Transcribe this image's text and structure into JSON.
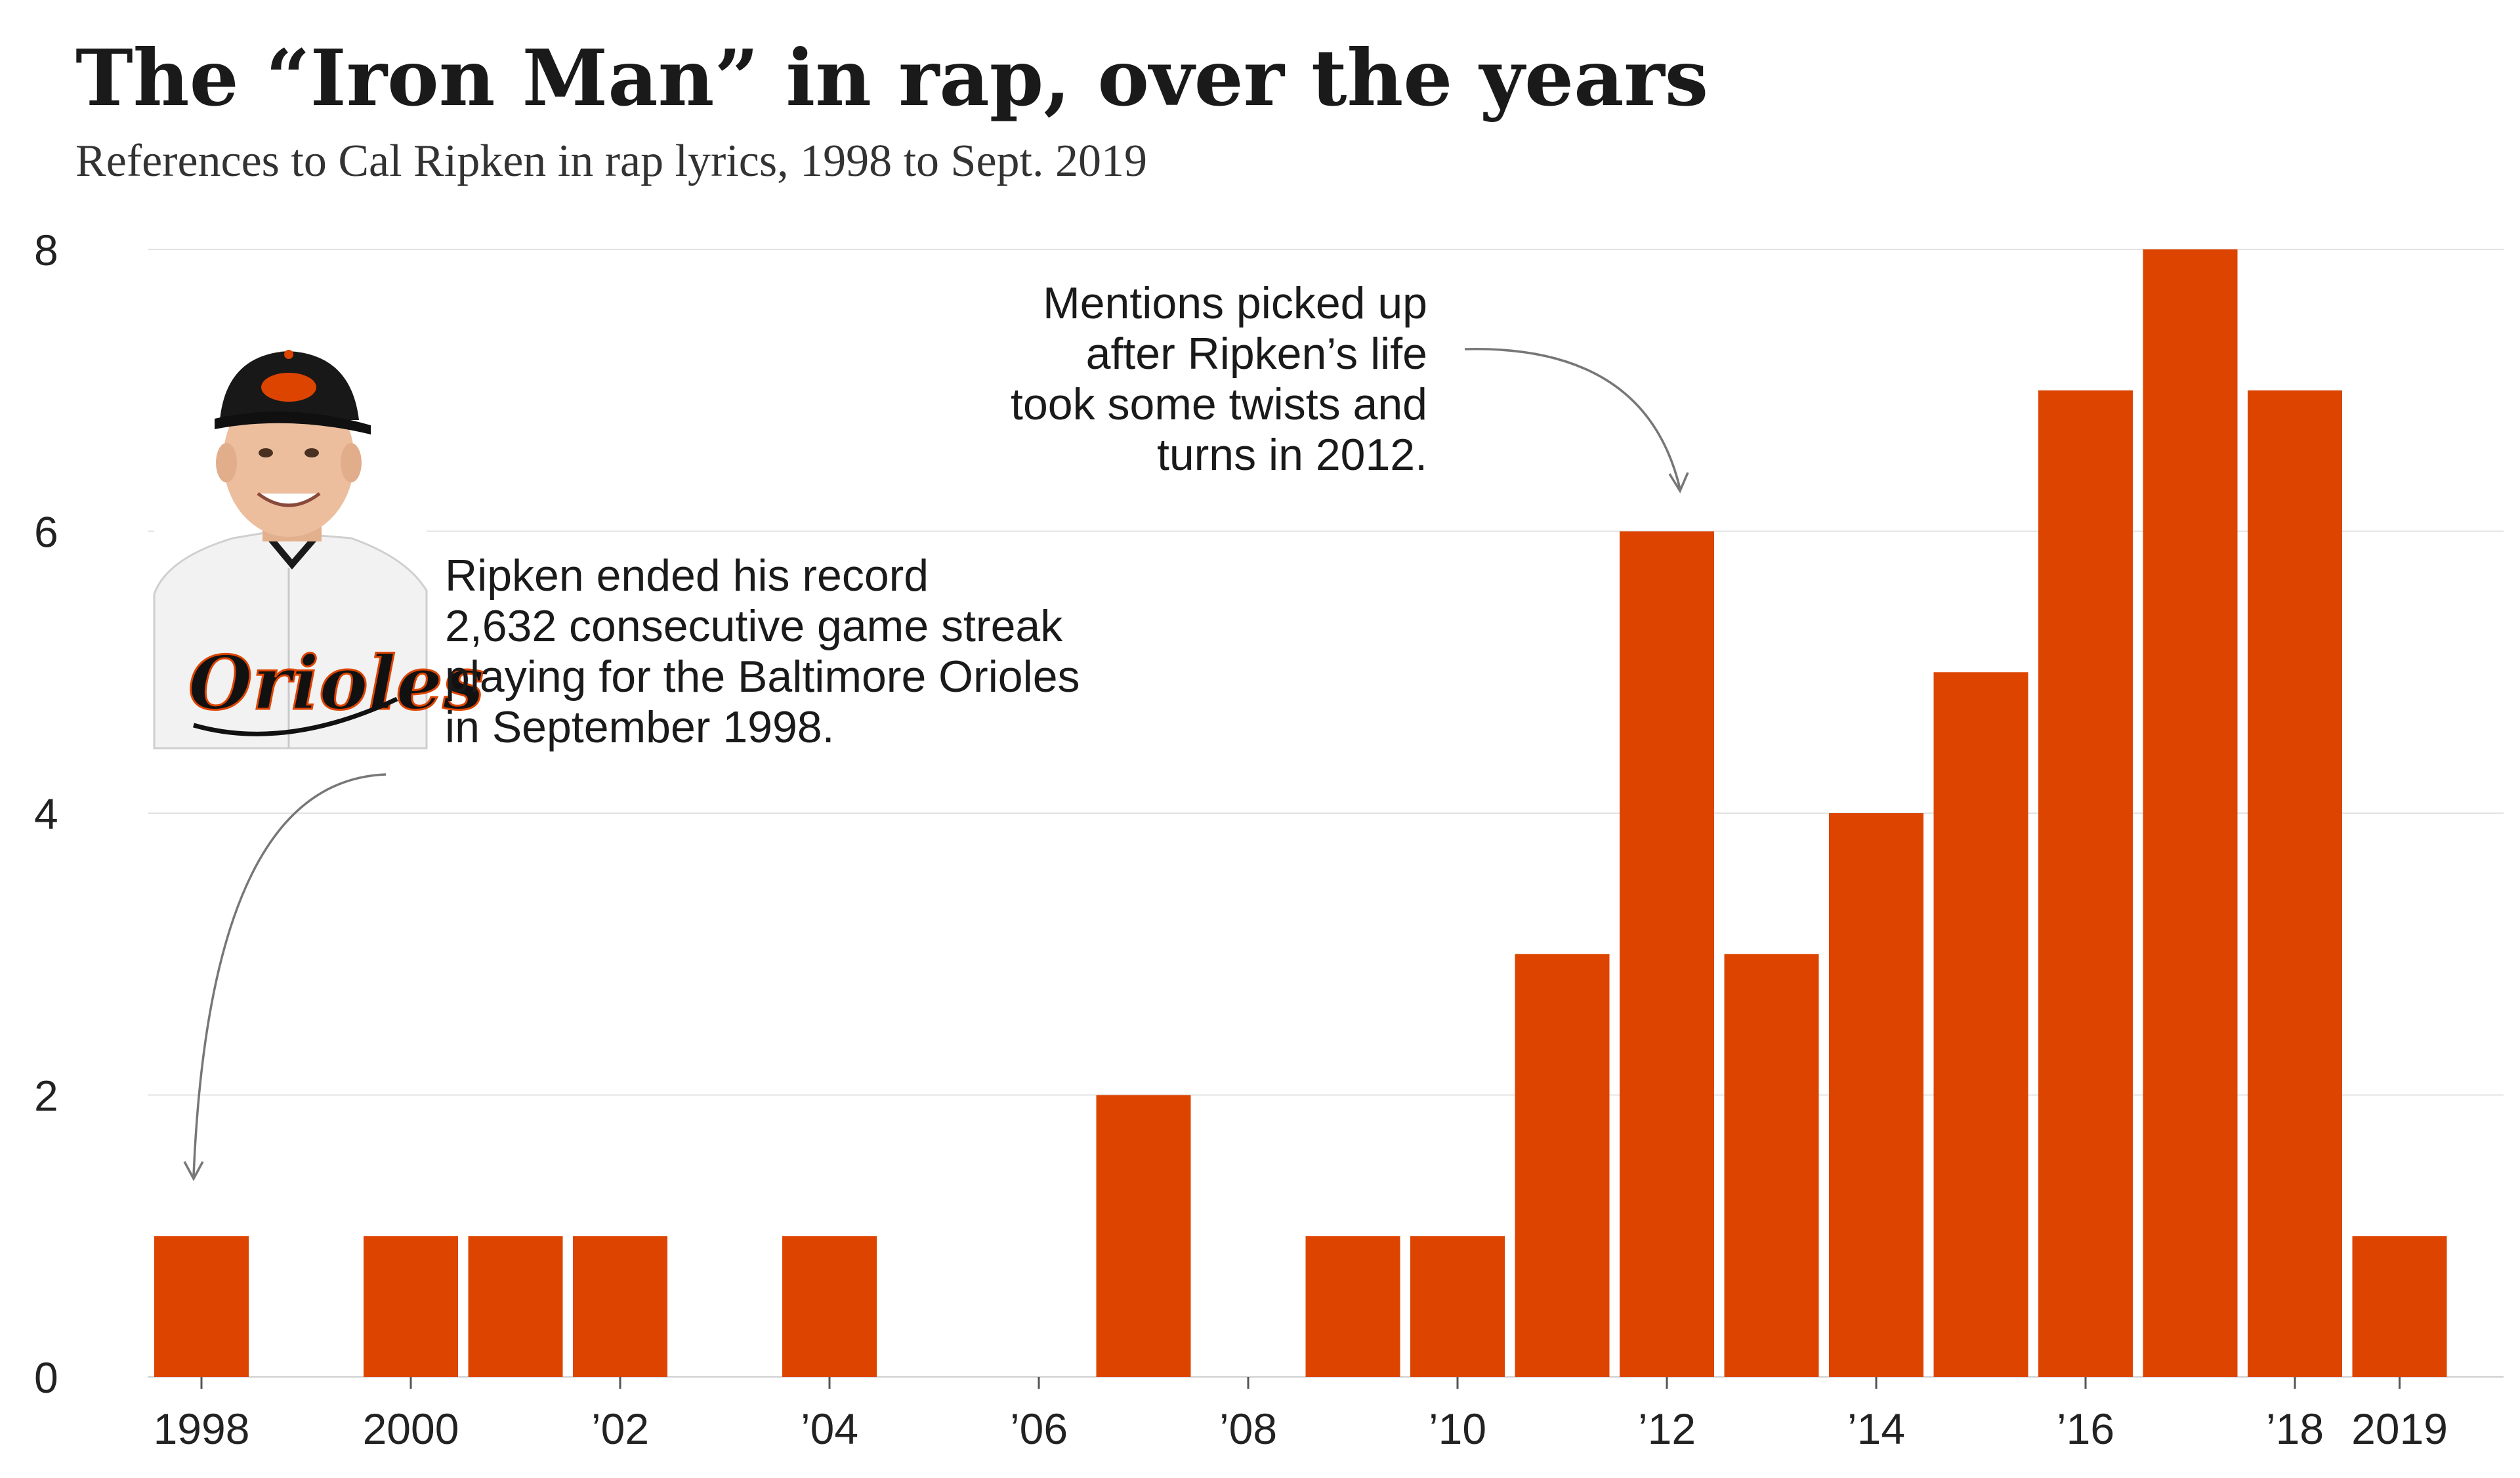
{
  "chart_data": {
    "type": "bar",
    "title": "The “Iron Man” in rap, over the years",
    "subtitle": "References to Cal Ripken in rap lyrics, 1998 to Sept. 2019",
    "xlabel": "",
    "ylabel": "",
    "ylim": [
      0,
      8
    ],
    "yticks": [
      0,
      2,
      4,
      6,
      8
    ],
    "grid": true,
    "categories": [
      "1998",
      "1999",
      "2000",
      "2001",
      "2002",
      "2003",
      "2004",
      "2005",
      "2006",
      "2007",
      "2008",
      "2009",
      "2010",
      "2011",
      "2012",
      "2013",
      "2014",
      "2015",
      "2016",
      "2017",
      "2018",
      "2019"
    ],
    "values": [
      1,
      0,
      1,
      1,
      1,
      0,
      1,
      0,
      0,
      2,
      0,
      1,
      1,
      3,
      6,
      3,
      4,
      5,
      7,
      8,
      7,
      1
    ],
    "xtick_labels": [
      {
        "category": "1998",
        "label": "1998"
      },
      {
        "category": "2000",
        "label": "2000"
      },
      {
        "category": "2002",
        "label": "’02"
      },
      {
        "category": "2004",
        "label": "’04"
      },
      {
        "category": "2006",
        "label": "’06"
      },
      {
        "category": "2008",
        "label": "’08"
      },
      {
        "category": "2010",
        "label": "’10"
      },
      {
        "category": "2012",
        "label": "’12"
      },
      {
        "category": "2014",
        "label": "’14"
      },
      {
        "category": "2016",
        "label": "’16"
      },
      {
        "category": "2018",
        "label": "’18"
      },
      {
        "category": "2019",
        "label": "2019"
      }
    ],
    "bar_color": "#dd4400",
    "annotations": [
      {
        "name": "streak-annotation",
        "target": "1998",
        "lines": [
          "Ripken ended his record",
          "2,632 consecutive game streak",
          "playing for the Baltimore Orioles",
          "in September 1998."
        ]
      },
      {
        "name": "twists-annotation",
        "target": "2012",
        "lines": [
          "Mentions picked up",
          "after Ripken’s life",
          "took some twists and",
          "turns  in 2012."
        ]
      }
    ]
  }
}
